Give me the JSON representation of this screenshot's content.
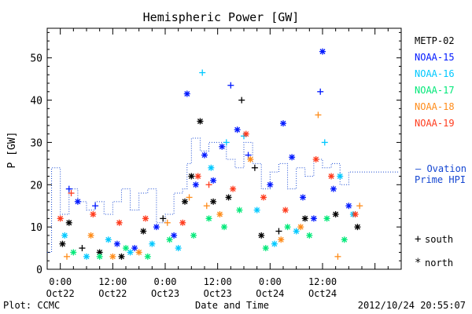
{
  "chart_data": {
    "type": "scatter",
    "title": "Hemispheric Power [GW]",
    "ylabel": "P [GW]",
    "xlabel": "Date and Time",
    "ylim": [
      0,
      57
    ],
    "xlim": [
      "2012-10-21T21:00",
      "2012-10-25T06:00"
    ],
    "yticks": [
      0,
      10,
      20,
      30,
      40,
      50
    ],
    "xticks": [
      {
        "t": "2012-10-22T00:00",
        "time": "0:00",
        "date": "Oct22"
      },
      {
        "t": "2012-10-22T12:00",
        "time": "12:00",
        "date": "Oct22"
      },
      {
        "t": "2012-10-23T00:00",
        "time": "0:00",
        "date": "Oct23"
      },
      {
        "t": "2012-10-23T12:00",
        "time": "12:00",
        "date": "Oct23"
      },
      {
        "t": "2012-10-24T00:00",
        "time": "0:00",
        "date": "Oct24"
      },
      {
        "t": "2012-10-24T12:00",
        "time": "12:00",
        "date": "Oct24"
      }
    ],
    "legend_placement": "right",
    "marker_legend": [
      {
        "symbol": "+",
        "label": "south"
      },
      {
        "symbol": "*",
        "label": "north"
      }
    ],
    "series": [
      {
        "name": "METP-02",
        "color": "#000000",
        "points": [
          {
            "t": "2012-10-22T00:30",
            "v": 6,
            "m": "*"
          },
          {
            "t": "2012-10-22T02:00",
            "v": 11,
            "m": "*"
          },
          {
            "t": "2012-10-22T05:00",
            "v": 5,
            "m": "+"
          },
          {
            "t": "2012-10-22T09:00",
            "v": 4,
            "m": "*"
          },
          {
            "t": "2012-10-22T14:00",
            "v": 3,
            "m": "*"
          },
          {
            "t": "2012-10-22T19:00",
            "v": 9,
            "m": "*"
          },
          {
            "t": "2012-10-22T23:30",
            "v": 12,
            "m": "+"
          },
          {
            "t": "2012-10-23T04:30",
            "v": 16,
            "m": "*"
          },
          {
            "t": "2012-10-23T06:00",
            "v": 22,
            "m": "*"
          },
          {
            "t": "2012-10-23T08:00",
            "v": 35,
            "m": "*"
          },
          {
            "t": "2012-10-23T11:00",
            "v": 16,
            "m": "*"
          },
          {
            "t": "2012-10-23T14:30",
            "v": 17,
            "m": "*"
          },
          {
            "t": "2012-10-23T17:30",
            "v": 40,
            "m": "+"
          },
          {
            "t": "2012-10-23T20:30",
            "v": 24,
            "m": "+"
          },
          {
            "t": "2012-10-23T22:00",
            "v": 8,
            "m": "*"
          },
          {
            "t": "2012-10-24T02:00",
            "v": 9,
            "m": "+"
          },
          {
            "t": "2012-10-24T08:00",
            "v": 12,
            "m": "*"
          },
          {
            "t": "2012-10-24T15:00",
            "v": 13,
            "m": "*"
          },
          {
            "t": "2012-10-24T20:00",
            "v": 10,
            "m": "*"
          }
        ]
      },
      {
        "name": "NOAA-15",
        "color": "#0018ff",
        "points": [
          {
            "t": "2012-10-22T02:00",
            "v": 19,
            "m": "+"
          },
          {
            "t": "2012-10-22T04:00",
            "v": 16,
            "m": "*"
          },
          {
            "t": "2012-10-22T08:00",
            "v": 15,
            "m": "+"
          },
          {
            "t": "2012-10-22T13:00",
            "v": 6,
            "m": "*"
          },
          {
            "t": "2012-10-22T17:00",
            "v": 5,
            "m": "*"
          },
          {
            "t": "2012-10-22T22:00",
            "v": 10,
            "m": "*"
          },
          {
            "t": "2012-10-23T02:00",
            "v": 8,
            "m": "*"
          },
          {
            "t": "2012-10-23T05:00",
            "v": 41.5,
            "m": "*"
          },
          {
            "t": "2012-10-23T07:00",
            "v": 20,
            "m": "*"
          },
          {
            "t": "2012-10-23T09:00",
            "v": 27,
            "m": "*"
          },
          {
            "t": "2012-10-23T11:00",
            "v": 21,
            "m": "*"
          },
          {
            "t": "2012-10-23T13:00",
            "v": 29,
            "m": "*"
          },
          {
            "t": "2012-10-23T15:00",
            "v": 43.5,
            "m": "+"
          },
          {
            "t": "2012-10-23T16:30",
            "v": 33,
            "m": "*"
          },
          {
            "t": "2012-10-23T19:00",
            "v": 27,
            "m": "+"
          },
          {
            "t": "2012-10-24T00:00",
            "v": 20,
            "m": "*"
          },
          {
            "t": "2012-10-24T03:00",
            "v": 34.5,
            "m": "*"
          },
          {
            "t": "2012-10-24T05:00",
            "v": 26.5,
            "m": "*"
          },
          {
            "t": "2012-10-24T07:30",
            "v": 17,
            "m": "*"
          },
          {
            "t": "2012-10-24T10:00",
            "v": 12,
            "m": "*"
          },
          {
            "t": "2012-10-24T11:30",
            "v": 42,
            "m": "+"
          },
          {
            "t": "2012-10-24T12:00",
            "v": 51.5,
            "m": "*"
          },
          {
            "t": "2012-10-24T14:30",
            "v": 19,
            "m": "*"
          },
          {
            "t": "2012-10-24T18:00",
            "v": 15,
            "m": "*"
          }
        ]
      },
      {
        "name": "NOAA-16",
        "color": "#00c8ff",
        "points": [
          {
            "t": "2012-10-22T01:00",
            "v": 8,
            "m": "*"
          },
          {
            "t": "2012-10-22T06:00",
            "v": 3,
            "m": "*"
          },
          {
            "t": "2012-10-22T11:00",
            "v": 7,
            "m": "*"
          },
          {
            "t": "2012-10-22T16:00",
            "v": 4,
            "m": "*"
          },
          {
            "t": "2012-10-22T21:00",
            "v": 6,
            "m": "*"
          },
          {
            "t": "2012-10-23T03:00",
            "v": 5,
            "m": "*"
          },
          {
            "t": "2012-10-23T08:30",
            "v": 46.5,
            "m": "+"
          },
          {
            "t": "2012-10-23T10:30",
            "v": 24,
            "m": "*"
          },
          {
            "t": "2012-10-23T14:00",
            "v": 30,
            "m": "+"
          },
          {
            "t": "2012-10-23T18:00",
            "v": 31.5,
            "m": "+"
          },
          {
            "t": "2012-10-23T21:00",
            "v": 14,
            "m": "*"
          },
          {
            "t": "2012-10-24T01:00",
            "v": 6,
            "m": "*"
          },
          {
            "t": "2012-10-24T06:00",
            "v": 9,
            "m": "*"
          },
          {
            "t": "2012-10-24T12:30",
            "v": 30,
            "m": "+"
          },
          {
            "t": "2012-10-24T16:00",
            "v": 22,
            "m": "*"
          },
          {
            "t": "2012-10-24T19:00",
            "v": 13,
            "m": "*"
          }
        ]
      },
      {
        "name": "NOAA-17",
        "color": "#00e878",
        "points": [
          {
            "t": "2012-10-22T03:00",
            "v": 4,
            "m": "*"
          },
          {
            "t": "2012-10-22T09:00",
            "v": 3,
            "m": "*"
          },
          {
            "t": "2012-10-22T15:00",
            "v": 5,
            "m": "*"
          },
          {
            "t": "2012-10-22T20:00",
            "v": 3,
            "m": "*"
          },
          {
            "t": "2012-10-23T01:00",
            "v": 7,
            "m": "*"
          },
          {
            "t": "2012-10-23T06:30",
            "v": 8,
            "m": "*"
          },
          {
            "t": "2012-10-23T10:00",
            "v": 12,
            "m": "*"
          },
          {
            "t": "2012-10-23T13:30",
            "v": 10,
            "m": "*"
          },
          {
            "t": "2012-10-23T17:00",
            "v": 14,
            "m": "*"
          },
          {
            "t": "2012-10-23T23:00",
            "v": 5,
            "m": "*"
          },
          {
            "t": "2012-10-24T04:00",
            "v": 10,
            "m": "*"
          },
          {
            "t": "2012-10-24T09:00",
            "v": 8,
            "m": "*"
          },
          {
            "t": "2012-10-24T13:00",
            "v": 12,
            "m": "*"
          },
          {
            "t": "2012-10-24T17:00",
            "v": 7,
            "m": "*"
          }
        ]
      },
      {
        "name": "NOAA-18",
        "color": "#ff8c1a",
        "points": [
          {
            "t": "2012-10-22T01:30",
            "v": 3,
            "m": "+"
          },
          {
            "t": "2012-10-22T07:00",
            "v": 8,
            "m": "*"
          },
          {
            "t": "2012-10-22T12:00",
            "v": 3,
            "m": "*"
          },
          {
            "t": "2012-10-22T18:00",
            "v": 4,
            "m": "*"
          },
          {
            "t": "2012-10-23T00:30",
            "v": 11,
            "m": "+"
          },
          {
            "t": "2012-10-23T05:30",
            "v": 17,
            "m": "+"
          },
          {
            "t": "2012-10-23T09:30",
            "v": 15,
            "m": "+"
          },
          {
            "t": "2012-10-23T12:30",
            "v": 13,
            "m": "*"
          },
          {
            "t": "2012-10-23T19:30",
            "v": 26,
            "m": "*"
          },
          {
            "t": "2012-10-24T02:30",
            "v": 7,
            "m": "*"
          },
          {
            "t": "2012-10-24T07:00",
            "v": 10,
            "m": "*"
          },
          {
            "t": "2012-10-24T11:00",
            "v": 36.5,
            "m": "+"
          },
          {
            "t": "2012-10-24T15:30",
            "v": 3,
            "m": "+"
          },
          {
            "t": "2012-10-24T20:30",
            "v": 15,
            "m": "+"
          }
        ]
      },
      {
        "name": "NOAA-19",
        "color": "#ff3c1e",
        "points": [
          {
            "t": "2012-10-22T00:00",
            "v": 12,
            "m": "*"
          },
          {
            "t": "2012-10-22T02:30",
            "v": 18,
            "m": "+"
          },
          {
            "t": "2012-10-22T07:30",
            "v": 13,
            "m": "*"
          },
          {
            "t": "2012-10-22T13:30",
            "v": 11,
            "m": "*"
          },
          {
            "t": "2012-10-22T19:30",
            "v": 12,
            "m": "*"
          },
          {
            "t": "2012-10-23T04:00",
            "v": 11,
            "m": "*"
          },
          {
            "t": "2012-10-23T07:30",
            "v": 22,
            "m": "*"
          },
          {
            "t": "2012-10-23T10:00",
            "v": 20,
            "m": "+"
          },
          {
            "t": "2012-10-23T15:30",
            "v": 19,
            "m": "*"
          },
          {
            "t": "2012-10-23T18:30",
            "v": 32,
            "m": "*"
          },
          {
            "t": "2012-10-23T22:30",
            "v": 17,
            "m": "*"
          },
          {
            "t": "2012-10-24T03:30",
            "v": 14,
            "m": "*"
          },
          {
            "t": "2012-10-24T10:30",
            "v": 26,
            "m": "*"
          },
          {
            "t": "2012-10-24T14:00",
            "v": 22,
            "m": "*"
          },
          {
            "t": "2012-10-24T19:30",
            "v": 13,
            "m": "*"
          }
        ]
      },
      {
        "name": "Ovation Prime HPI",
        "color": "#1446d2",
        "line": "step-dotted",
        "points": [
          {
            "t": "2012-10-21T21:00",
            "v": 4
          },
          {
            "t": "2012-10-21T22:00",
            "v": 24
          },
          {
            "t": "2012-10-22T00:00",
            "v": 13
          },
          {
            "t": "2012-10-22T02:00",
            "v": 19
          },
          {
            "t": "2012-10-22T04:00",
            "v": 16
          },
          {
            "t": "2012-10-22T06:00",
            "v": 14
          },
          {
            "t": "2012-10-22T08:00",
            "v": 16
          },
          {
            "t": "2012-10-22T10:00",
            "v": 13
          },
          {
            "t": "2012-10-22T12:00",
            "v": 16
          },
          {
            "t": "2012-10-22T14:00",
            "v": 19
          },
          {
            "t": "2012-10-22T16:00",
            "v": 14
          },
          {
            "t": "2012-10-22T18:00",
            "v": 18
          },
          {
            "t": "2012-10-22T20:00",
            "v": 19
          },
          {
            "t": "2012-10-22T22:00",
            "v": 11
          },
          {
            "t": "2012-10-23T00:00",
            "v": 13
          },
          {
            "t": "2012-10-23T02:00",
            "v": 18
          },
          {
            "t": "2012-10-23T04:00",
            "v": 19
          },
          {
            "t": "2012-10-23T05:00",
            "v": 25
          },
          {
            "t": "2012-10-23T06:00",
            "v": 31
          },
          {
            "t": "2012-10-23T08:00",
            "v": 28
          },
          {
            "t": "2012-10-23T10:00",
            "v": 30
          },
          {
            "t": "2012-10-23T12:00",
            "v": 30
          },
          {
            "t": "2012-10-23T14:00",
            "v": 26
          },
          {
            "t": "2012-10-23T16:00",
            "v": 24
          },
          {
            "t": "2012-10-23T18:00",
            "v": 30
          },
          {
            "t": "2012-10-23T20:00",
            "v": 25
          },
          {
            "t": "2012-10-23T22:00",
            "v": 19
          },
          {
            "t": "2012-10-24T00:00",
            "v": 23
          },
          {
            "t": "2012-10-24T02:00",
            "v": 25
          },
          {
            "t": "2012-10-24T04:00",
            "v": 19
          },
          {
            "t": "2012-10-24T06:00",
            "v": 24
          },
          {
            "t": "2012-10-24T08:00",
            "v": 22
          },
          {
            "t": "2012-10-24T10:00",
            "v": 26
          },
          {
            "t": "2012-10-24T12:00",
            "v": 24
          },
          {
            "t": "2012-10-24T14:00",
            "v": 25
          },
          {
            "t": "2012-10-24T16:00",
            "v": 20
          },
          {
            "t": "2012-10-24T18:00",
            "v": 23
          },
          {
            "t": "2012-10-24T20:00",
            "v": 23
          },
          {
            "t": "2012-10-24T21:30",
            "v": 23
          }
        ]
      }
    ]
  },
  "footer": {
    "left": "Plot: CCMC",
    "right": "2012/10/24 20:55:07"
  },
  "ovation_legend": {
    "line1": "– Ovation",
    "line2": "Prime HPI"
  }
}
